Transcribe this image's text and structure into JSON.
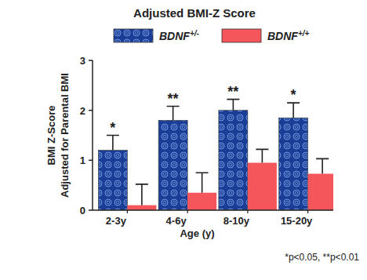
{
  "chart_data": {
    "type": "bar",
    "title": "Adjusted BMI-Z Score",
    "categories": [
      "2-3y",
      "4-6y",
      "8-10y",
      "15-20y"
    ],
    "series": [
      {
        "name": "BDNF+/-",
        "color": "#1c3d96",
        "values": [
          1.2,
          1.8,
          2.0,
          1.85
        ],
        "errors": [
          0.3,
          0.28,
          0.22,
          0.3
        ]
      },
      {
        "name": "BDNF+/+",
        "color": "#f4565b",
        "values": [
          0.1,
          0.35,
          0.95,
          0.73
        ],
        "errors": [
          0.42,
          0.4,
          0.27,
          0.3
        ]
      }
    ],
    "annotations": [
      "*",
      "**",
      "**",
      "*"
    ],
    "footnote": "*p<0.05, **p<0.01",
    "x_label": "Age (y)",
    "y_label": [
      "BMI Z-Score",
      "Adjusted for Parental BMI"
    ],
    "ylim": [
      0,
      3
    ],
    "yticks": [
      0,
      1,
      2,
      3
    ],
    "grid": false,
    "legend": "top"
  }
}
